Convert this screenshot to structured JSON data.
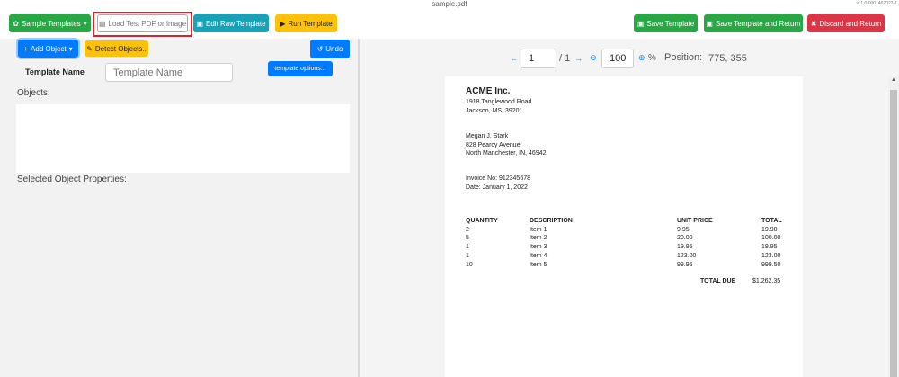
{
  "window": {
    "title": "sample.pdf",
    "version": "v. 1.0.0001462022-1"
  },
  "toolbar": {
    "sample_templates": "Sample Templates",
    "load_test": "Load Test PDF or Image",
    "edit_raw": "Edit Raw Template",
    "run": "Run Template",
    "save": "Save Template",
    "save_return": "Save Template and Return",
    "discard": "Discard and Return"
  },
  "left": {
    "add_object": "Add Object",
    "detect": "Detect Objects..",
    "undo": "Undo",
    "template_name_label": "Template Name",
    "template_name_placeholder": "Template Name",
    "template_name_value": "",
    "template_options": "template options...",
    "objects_label": "Objects:",
    "selected_props_label": "Selected Object Properties:"
  },
  "viewer": {
    "page": "1",
    "page_total": "/ 1",
    "zoom": "100",
    "zoom_unit": "%",
    "position_label": "Position:",
    "position_value": "775, 355"
  },
  "invoice": {
    "company": "ACME Inc.",
    "addr1": "1918 Tanglewood Road",
    "addr2": "Jackson, MS, 39201",
    "cust1": "Megan J. Stark",
    "cust2": "828 Pearcy Avenue",
    "cust3": "North Manchester, IN, 46942",
    "invoice_no": "Invoice No: 912345678",
    "date": "Date: January 1, 2022",
    "headers": [
      "QUANTITY",
      "DESCRIPTION",
      "UNIT PRICE",
      "TOTAL"
    ],
    "rows": [
      [
        "2",
        "Item 1",
        "9.95",
        "19.90"
      ],
      [
        "5",
        "Item 2",
        "20.00",
        "100.00"
      ],
      [
        "1",
        "Item 3",
        "19.95",
        "19.95"
      ],
      [
        "1",
        "Item 4",
        "123.00",
        "123.00"
      ],
      [
        "10",
        "Item 5",
        "99.95",
        "999.50"
      ]
    ],
    "total_label": "TOTAL DUE",
    "total_value": "$1,262.35"
  },
  "colors": {
    "highlight": "#e0202a",
    "green": "#28a745",
    "teal": "#17a2b8",
    "yellow": "#ffc107",
    "red": "#dc3545",
    "blue": "#007bff"
  }
}
